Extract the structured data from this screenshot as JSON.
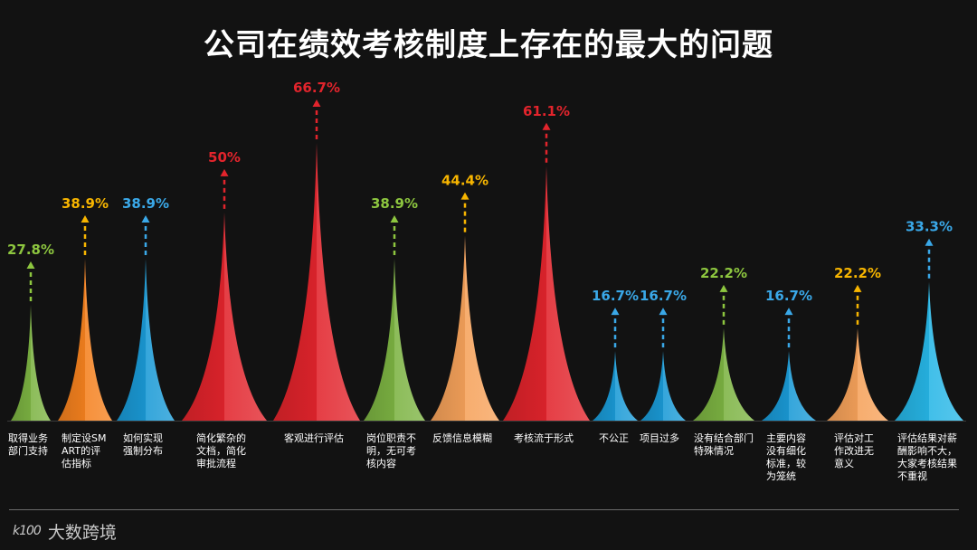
{
  "chart_data": {
    "type": "bar",
    "title": "公司在绩效考核制度上存在的最大的问题",
    "categories": [
      "取得业务部门支持",
      "制定设SMART的评估指标",
      "如何实现强制分布",
      "简化繁杂的文档，简化审批流程",
      "客观进行评估",
      "岗位职责不明，无可考核内容",
      "反馈信息模糊",
      "考核流于形式",
      "不公正",
      "项目过多",
      "没有结合部门特殊情况",
      "主要内容没有细化标准，较为笼统",
      "评估对工作改进无意义",
      "评估结果对薪酬影响不大，大家考核结果不重视"
    ],
    "values": [
      27.8,
      38.9,
      38.9,
      50,
      66.7,
      38.9,
      44.4,
      61.1,
      16.7,
      16.7,
      22.2,
      16.7,
      22.2,
      33.3
    ],
    "value_labels": [
      "27.8%",
      "38.9%",
      "38.9%",
      "50%",
      "66.7%",
      "38.9%",
      "44.4%",
      "61.1%",
      "16.7%",
      "16.7%",
      "22.2%",
      "16.7%",
      "22.2%",
      "33.3%"
    ],
    "colors": [
      "#7cb342",
      "#f5811f",
      "#1a9ad6",
      "#e2242c",
      "#e2242c",
      "#7cb342",
      "#f6a25a",
      "#e2242c",
      "#1a9ad6",
      "#1a9ad6",
      "#7cb342",
      "#1a9ad6",
      "#f6a25a",
      "#27b6e6"
    ],
    "label_colors": [
      "#8dc63f",
      "#f7b500",
      "#3aa8e8",
      "#e2242c",
      "#e2242c",
      "#8dc63f",
      "#f7b500",
      "#e2242c",
      "#3aa8e8",
      "#3aa8e8",
      "#8dc63f",
      "#3aa8e8",
      "#f7b500",
      "#3aa8e8"
    ],
    "ylim": [
      0,
      66.7
    ]
  },
  "footer": {
    "logo_mark": "k100",
    "logo_text": "大数跨境"
  }
}
